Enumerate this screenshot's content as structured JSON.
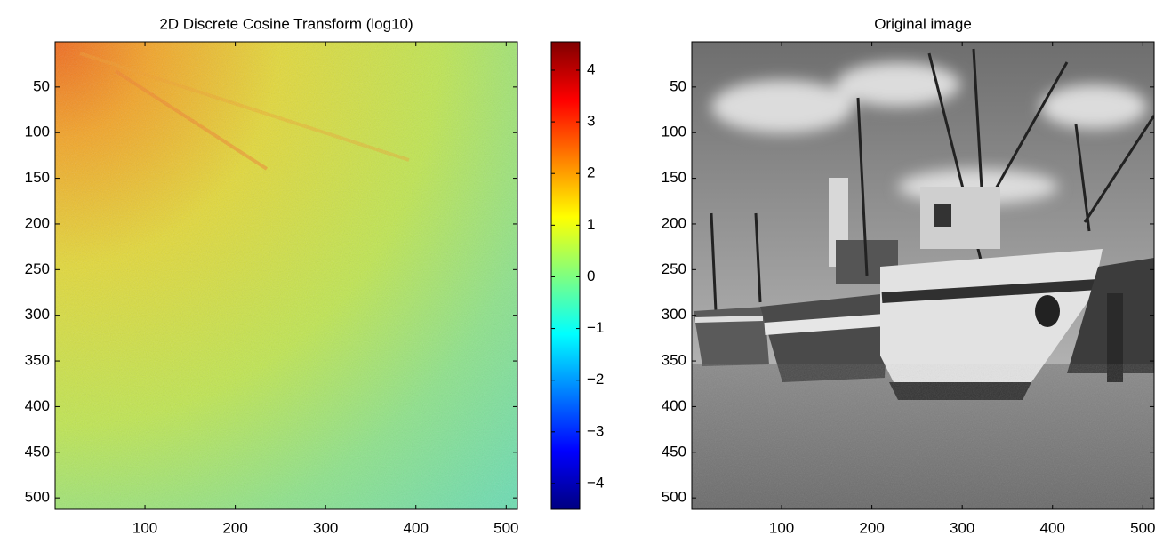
{
  "chart_data": [
    {
      "type": "heatmap",
      "title": "2D Discrete Cosine Transform (log10)",
      "xlim": [
        0.5,
        512.5
      ],
      "xticks": [
        100,
        200,
        300,
        400,
        500
      ],
      "ylim": [
        0.5,
        512.5
      ],
      "yticks": [
        50,
        100,
        150,
        200,
        250,
        300,
        350,
        400,
        450,
        500
      ],
      "y_reversed": true,
      "colormap": "jet",
      "colorbar": {
        "clim": [
          -4.5,
          4.55
        ],
        "ticks": [
          {
            "value": -4,
            "label": "−4"
          },
          {
            "value": -3,
            "label": "−3"
          },
          {
            "value": -2,
            "label": "−2"
          },
          {
            "value": -1,
            "label": "−1"
          },
          0,
          1,
          2,
          3,
          4
        ]
      }
    },
    {
      "type": "image",
      "title": "Original image",
      "xlim": [
        0.5,
        512.5
      ],
      "xticks": [
        100,
        200,
        300,
        400,
        500
      ],
      "ylim": [
        0.5,
        512.5
      ],
      "yticks": [
        50,
        100,
        150,
        200,
        250,
        300,
        350,
        400,
        450,
        500
      ],
      "y_reversed": true,
      "colormap": "gray"
    }
  ]
}
